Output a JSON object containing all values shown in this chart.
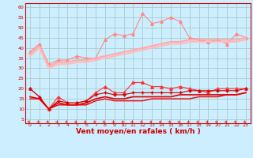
{
  "title": "",
  "xlabel": "Vent moyen/en rafales ( km/h )",
  "bg_color": "#cceeff",
  "grid_color": "#aacccc",
  "x_ticks": [
    0,
    1,
    2,
    3,
    4,
    5,
    6,
    7,
    8,
    9,
    10,
    11,
    12,
    13,
    14,
    15,
    16,
    17,
    18,
    19,
    20,
    21,
    22,
    23
  ],
  "y_ticks": [
    5,
    10,
    15,
    20,
    25,
    30,
    35,
    40,
    45,
    50,
    55,
    60
  ],
  "xlim": [
    -0.5,
    23.5
  ],
  "ylim": [
    3,
    62
  ],
  "lines_light": [
    {
      "x": [
        0,
        1,
        2,
        3,
        4,
        5,
        6,
        7,
        8,
        9,
        10,
        11,
        12,
        13,
        14,
        15,
        16,
        17,
        18,
        19,
        20,
        21,
        22,
        23
      ],
      "y": [
        38,
        42,
        32,
        34,
        34,
        36,
        35,
        35,
        44,
        47,
        46,
        47,
        57,
        52,
        53,
        55,
        53,
        45,
        44,
        43,
        44,
        42,
        47,
        45
      ],
      "color": "#ff8888",
      "marker": "^",
      "ms": 2.5,
      "lw": 0.8
    },
    {
      "x": [
        0,
        1,
        2,
        3,
        4,
        5,
        6,
        7,
        8,
        9,
        10,
        11,
        12,
        13,
        14,
        15,
        16,
        17,
        18,
        19,
        20,
        21,
        22,
        23
      ],
      "y": [
        37,
        41,
        31,
        33,
        33,
        34,
        34,
        35,
        36,
        37,
        38,
        39,
        40,
        41,
        42,
        43,
        43,
        44,
        44,
        44,
        44,
        44,
        44,
        45
      ],
      "color": "#ffaaaa",
      "marker": null,
      "ms": 2,
      "lw": 1.5
    },
    {
      "x": [
        0,
        1,
        2,
        3,
        4,
        5,
        6,
        7,
        8,
        9,
        10,
        11,
        12,
        13,
        14,
        15,
        16,
        17,
        18,
        19,
        20,
        21,
        22,
        23
      ],
      "y": [
        36,
        40,
        30,
        32,
        32,
        33,
        33,
        34,
        35,
        36,
        37,
        38,
        39,
        40,
        41,
        42,
        42,
        43,
        43,
        43,
        43,
        43,
        43,
        44
      ],
      "color": "#ffbbbb",
      "marker": null,
      "ms": 2,
      "lw": 1.5
    }
  ],
  "lines_dark": [
    {
      "x": [
        0,
        1,
        2,
        3,
        4,
        5,
        6,
        7,
        8,
        9,
        10,
        11,
        12,
        13,
        14,
        15,
        16,
        17,
        18,
        19,
        20,
        21,
        22,
        23
      ],
      "y": [
        20,
        16,
        10,
        16,
        13,
        13,
        14,
        18,
        21,
        18,
        18,
        23,
        23,
        21,
        21,
        20,
        21,
        20,
        19,
        18,
        20,
        20,
        20,
        20
      ],
      "color": "#ff3333",
      "marker": "^",
      "ms": 2.5,
      "lw": 0.8
    },
    {
      "x": [
        0,
        1,
        2,
        3,
        4,
        5,
        6,
        7,
        8,
        9,
        10,
        11,
        12,
        13,
        14,
        15,
        16,
        17,
        18,
        19,
        20,
        21,
        22,
        23
      ],
      "y": [
        20,
        16,
        10,
        14,
        13,
        13,
        14,
        17,
        18,
        17,
        17,
        18,
        18,
        18,
        18,
        18,
        18,
        19,
        19,
        19,
        19,
        19,
        19,
        20
      ],
      "color": "#cc0000",
      "marker": "+",
      "ms": 3,
      "lw": 0.8
    },
    {
      "x": [
        0,
        1,
        2,
        3,
        4,
        5,
        6,
        7,
        8,
        9,
        10,
        11,
        12,
        13,
        14,
        15,
        16,
        17,
        18,
        19,
        20,
        21,
        22,
        23
      ],
      "y": [
        16,
        15,
        10,
        13,
        12,
        12,
        13,
        15,
        16,
        15,
        15,
        16,
        16,
        16,
        16,
        16,
        17,
        17,
        17,
        17,
        17,
        17,
        17,
        18
      ],
      "color": "#dd0000",
      "marker": null,
      "ms": 2,
      "lw": 1.2
    },
    {
      "x": [
        0,
        1,
        2,
        3,
        4,
        5,
        6,
        7,
        8,
        9,
        10,
        11,
        12,
        13,
        14,
        15,
        16,
        17,
        18,
        19,
        20,
        21,
        22,
        23
      ],
      "y": [
        15,
        15,
        10,
        12,
        12,
        12,
        12,
        14,
        15,
        14,
        14,
        14,
        14,
        15,
        15,
        15,
        15,
        15,
        16,
        16,
        16,
        17,
        17,
        18
      ],
      "color": "#ee0000",
      "marker": null,
      "ms": 2,
      "lw": 1.0
    }
  ],
  "arrow_color": "#cc2222",
  "tick_color": "#cc0000",
  "label_color": "#cc0000",
  "axis_color": "#cc0000",
  "tick_fontsize": 4.5,
  "xlabel_fontsize": 6.5
}
